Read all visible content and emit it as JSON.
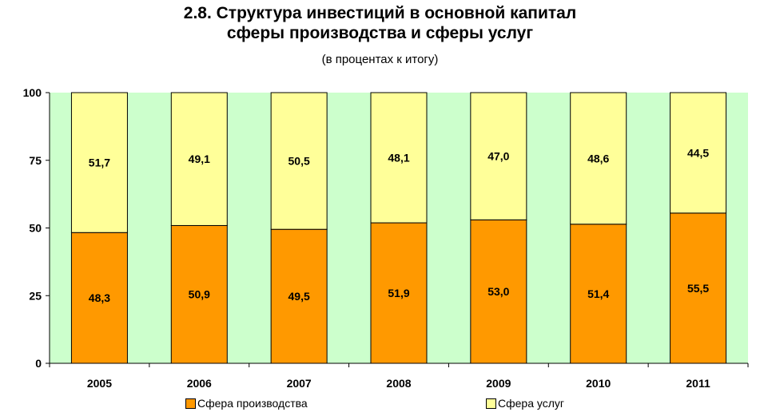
{
  "title_line1": "2.8. Структура инвестиций в основной капитал",
  "title_line2": "сферы производства и сферы услуг",
  "subtitle": "(в процентах к итогу)",
  "colors": {
    "production": "#ff9900",
    "services": "#ffff99",
    "background": "#ccffcc"
  },
  "chart_data": {
    "type": "bar",
    "stacked": true,
    "categories": [
      "2005",
      "2006",
      "2007",
      "2008",
      "2009",
      "2010",
      "2011"
    ],
    "series": [
      {
        "name": "Сфера производства",
        "values": [
          "48,3",
          "50,9",
          "49,5",
          "51,9",
          "53,0",
          "51,4",
          "55,5"
        ]
      },
      {
        "name": "Сфера услуг",
        "values": [
          "51,7",
          "49,1",
          "50,5",
          "48,1",
          "47,0",
          "48,6",
          "44,5"
        ]
      }
    ],
    "ylim": [
      0,
      100
    ],
    "yticks": [
      "0",
      "25",
      "50",
      "75",
      "100"
    ],
    "legend_position": "bottom"
  }
}
